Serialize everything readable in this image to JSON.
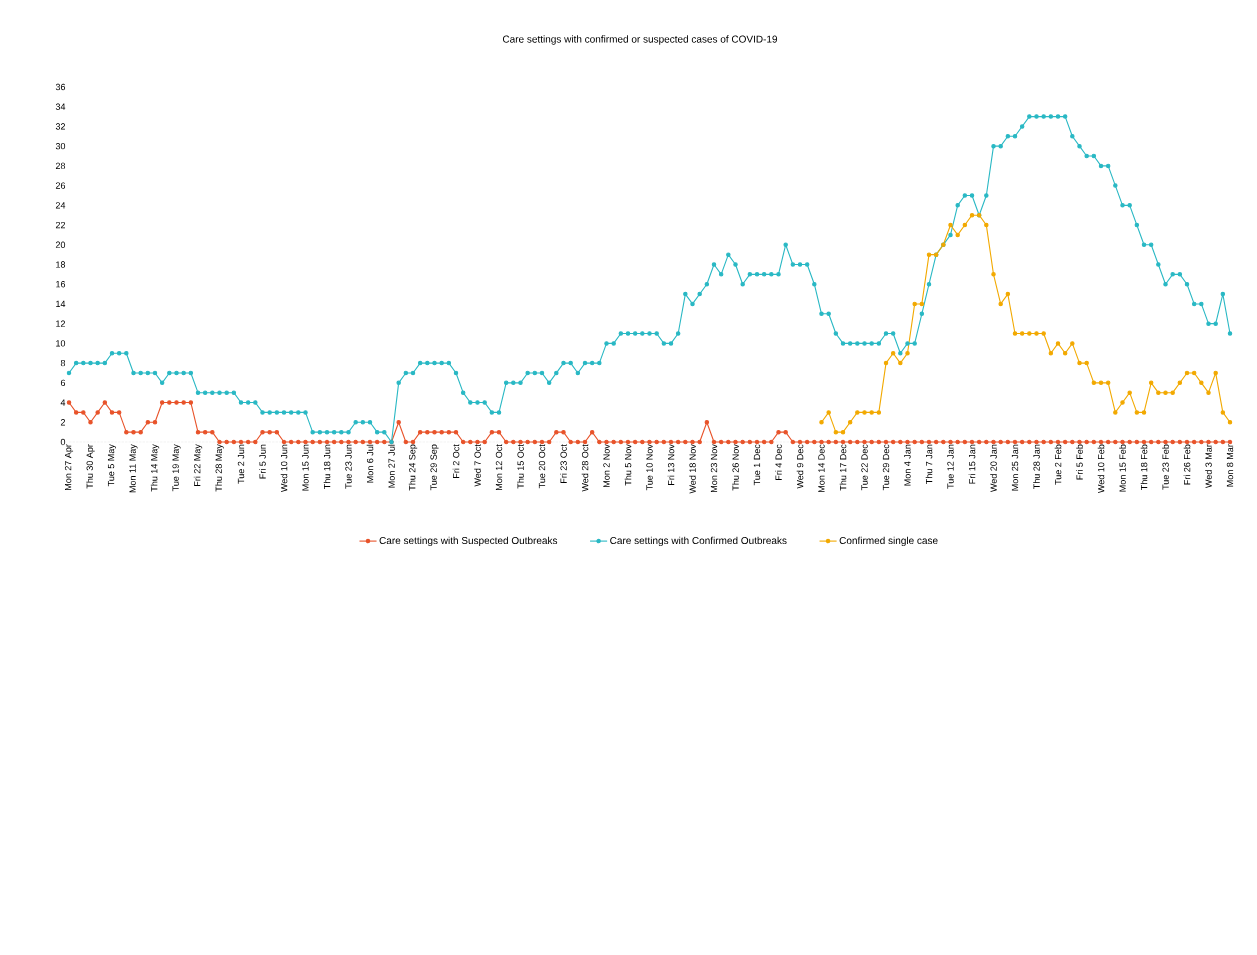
{
  "chart_data": {
    "type": "line",
    "title": "Care settings with confirmed or suspected cases of COVID-19",
    "categories": [
      "Mon 27 Apr",
      null,
      null,
      "Thu 30 Apr",
      null,
      null,
      "Tue 5 May",
      null,
      null,
      "Mon 11 May",
      null,
      null,
      "Thu 14 May",
      null,
      null,
      "Tue 19 May",
      null,
      null,
      "Fri 22 May",
      null,
      null,
      "Thu 28 May",
      null,
      null,
      "Tue 2 Jun",
      null,
      null,
      "Fri 5 Jun",
      null,
      null,
      "Wed 10 Jun",
      null,
      null,
      "Mon 15 Jun",
      null,
      null,
      "Thu 18 Jun",
      null,
      null,
      "Tue 23 Jun",
      null,
      null,
      "Mon 6 Jul",
      null,
      null,
      "Mon 27 Jul",
      null,
      null,
      "Thu 24 Sep",
      null,
      null,
      "Tue 29 Sep",
      null,
      null,
      "Fri 2 Oct",
      null,
      null,
      "Wed 7 Oct",
      null,
      null,
      "Mon 12 Oct",
      null,
      null,
      "Thu 15 Oct",
      null,
      null,
      "Tue 20 Oct",
      null,
      null,
      "Fri 23 Oct",
      null,
      null,
      "Wed 28 Oct",
      null,
      null,
      "Mon 2 Nov",
      null,
      null,
      "Thu 5 Nov",
      null,
      null,
      "Tue 10 Nov",
      null,
      null,
      "Fri 13 Nov",
      null,
      null,
      "Wed 18 Nov",
      null,
      null,
      "Mon 23 Nov",
      null,
      null,
      "Thu 26 Nov",
      null,
      null,
      "Tue 1 Dec",
      null,
      null,
      "Fri 4 Dec",
      null,
      null,
      "Wed 9 Dec",
      null,
      null,
      "Mon 14 Dec",
      null,
      null,
      "Thu 17 Dec",
      null,
      null,
      "Tue 22 Dec",
      null,
      null,
      "Tue 29 Dec",
      null,
      null,
      "Mon 4 Jan",
      null,
      null,
      "Thu 7 Jan",
      null,
      null,
      "Tue 12 Jan",
      null,
      null,
      "Fri 15 Jan",
      null,
      null,
      "Wed 20 Jan",
      null,
      null,
      "Mon 25 Jan",
      null,
      null,
      "Thu 28 Jan",
      null,
      null,
      "Tue 2 Feb",
      null,
      null,
      "Fri 5 Feb",
      null,
      null,
      "Wed 10 Feb",
      null,
      null,
      "Mon 15 Feb",
      null,
      null,
      "Thu 18 Feb",
      null,
      null,
      "Tue 23 Feb",
      null,
      null,
      "Fri 26 Feb",
      null,
      null,
      "Wed 3 Mar",
      null,
      null,
      "Mon 8 Mar"
    ],
    "series": [
      {
        "name": "Care settings with Suspected Outbreaks",
        "color": "#e8532a",
        "values": [
          4,
          3,
          3,
          2,
          3,
          4,
          3,
          3,
          1,
          1,
          1,
          2,
          2,
          4,
          4,
          4,
          4,
          4,
          1,
          1,
          1,
          0,
          0,
          0,
          0,
          0,
          0,
          1,
          1,
          1,
          0,
          0,
          0,
          0,
          0,
          0,
          0,
          0,
          0,
          0,
          0,
          0,
          0,
          0,
          0,
          0,
          2,
          0,
          0,
          1,
          1,
          1,
          1,
          1,
          1,
          0,
          0,
          0,
          0,
          1,
          1,
          0,
          0,
          0,
          0,
          0,
          0,
          0,
          1,
          1,
          0,
          0,
          0,
          1,
          0,
          0,
          0,
          0,
          0,
          0,
          0,
          0,
          0,
          0,
          0,
          0,
          0,
          0,
          0,
          2,
          0,
          0,
          0,
          0,
          0,
          0,
          0,
          0,
          0,
          1,
          1,
          0,
          0,
          0,
          0,
          0,
          0,
          0,
          0,
          0,
          0,
          0,
          0,
          0,
          0,
          0,
          0,
          0,
          0,
          0,
          0,
          0,
          0,
          0,
          0,
          0,
          0,
          0,
          0,
          0,
          0,
          0,
          0,
          0,
          0,
          0,
          0,
          0,
          0,
          0,
          0,
          0,
          0,
          0,
          0,
          0,
          0,
          0,
          0,
          0,
          0,
          0,
          0,
          0,
          0,
          0,
          0,
          0,
          0,
          0,
          0,
          0,
          0
        ]
      },
      {
        "name": "Care settings with Confirmed Outbreaks",
        "color": "#29b8c4",
        "values": [
          7,
          8,
          8,
          8,
          8,
          8,
          9,
          9,
          9,
          7,
          7,
          7,
          7,
          6,
          7,
          7,
          7,
          7,
          5,
          5,
          5,
          5,
          5,
          5,
          4,
          4,
          4,
          3,
          3,
          3,
          3,
          3,
          3,
          3,
          1,
          1,
          1,
          1,
          1,
          1,
          2,
          2,
          2,
          1,
          1,
          0,
          6,
          7,
          7,
          8,
          8,
          8,
          8,
          8,
          7,
          5,
          4,
          4,
          4,
          3,
          3,
          6,
          6,
          6,
          7,
          7,
          7,
          6,
          7,
          8,
          8,
          7,
          8,
          8,
          8,
          10,
          10,
          11,
          11,
          11,
          11,
          11,
          11,
          10,
          10,
          11,
          15,
          14,
          15,
          16,
          18,
          17,
          19,
          18,
          16,
          17,
          17,
          17,
          17,
          17,
          20,
          18,
          18,
          18,
          16,
          13,
          13,
          11,
          10,
          10,
          10,
          10,
          10,
          10,
          11,
          11,
          9,
          10,
          10,
          13,
          16,
          19,
          20,
          21,
          24,
          25,
          25,
          23,
          25,
          30,
          30,
          31,
          31,
          32,
          33,
          33,
          33,
          33,
          33,
          33,
          31,
          30,
          29,
          29,
          28,
          28,
          26,
          24,
          24,
          22,
          20,
          20,
          18,
          16,
          17,
          17,
          16,
          14,
          14,
          12,
          12,
          15,
          11
        ]
      },
      {
        "name": "Confirmed single case",
        "color": "#f2a900",
        "values": [
          null,
          null,
          null,
          null,
          null,
          null,
          null,
          null,
          null,
          null,
          null,
          null,
          null,
          null,
          null,
          null,
          null,
          null,
          null,
          null,
          null,
          null,
          null,
          null,
          null,
          null,
          null,
          null,
          null,
          null,
          null,
          null,
          null,
          null,
          null,
          null,
          null,
          null,
          null,
          null,
          null,
          null,
          null,
          null,
          null,
          null,
          null,
          null,
          null,
          null,
          null,
          null,
          null,
          null,
          null,
          null,
          null,
          null,
          null,
          null,
          null,
          null,
          null,
          null,
          null,
          null,
          null,
          null,
          null,
          null,
          null,
          null,
          null,
          null,
          null,
          null,
          null,
          null,
          null,
          null,
          null,
          null,
          null,
          null,
          null,
          null,
          null,
          null,
          null,
          null,
          null,
          null,
          null,
          null,
          null,
          null,
          null,
          null,
          null,
          null,
          null,
          null,
          null,
          null,
          null,
          2,
          3,
          1,
          1,
          2,
          3,
          3,
          3,
          3,
          8,
          9,
          8,
          9,
          14,
          14,
          19,
          19,
          20,
          22,
          21,
          22,
          23,
          23,
          22,
          17,
          14,
          15,
          11,
          11,
          11,
          11,
          11,
          9,
          10,
          9,
          10,
          8,
          8,
          6,
          6,
          6,
          3,
          4,
          5,
          3,
          3,
          6,
          5,
          5,
          5,
          6,
          7,
          7,
          6,
          5,
          7,
          3,
          2
        ]
      }
    ],
    "ylim": [
      0,
      36
    ],
    "yticks": [
      0,
      2,
      4,
      6,
      8,
      10,
      12,
      14,
      16,
      18,
      20,
      22,
      24,
      26,
      28,
      30,
      32,
      34,
      36
    ],
    "legend": "bottom",
    "marker": "circle"
  }
}
